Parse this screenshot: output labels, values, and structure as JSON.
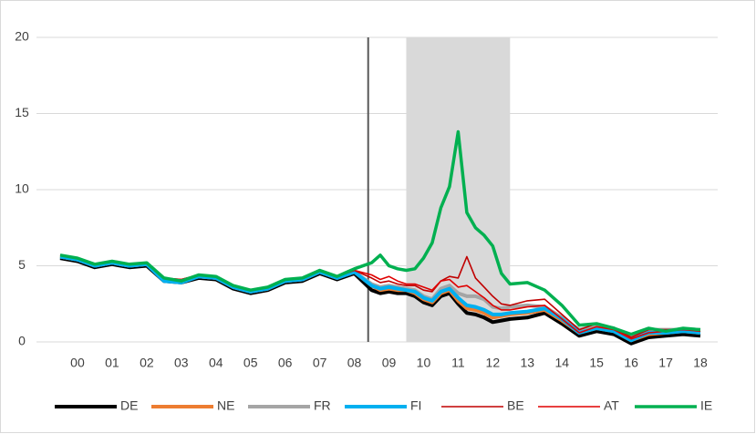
{
  "chart_data": {
    "type": "line",
    "x": [
      2000,
      2000.5,
      2001,
      2001.5,
      2002,
      2002.5,
      2003,
      2003.5,
      2004,
      2004.5,
      2005,
      2005.5,
      2006,
      2006.5,
      2007,
      2007.5,
      2008,
      2008.5,
      2009,
      2009.25,
      2009.5,
      2009.75,
      2010,
      2010.25,
      2010.5,
      2010.75,
      2011,
      2011.25,
      2011.5,
      2011.75,
      2012,
      2012.25,
      2012.5,
      2012.75,
      2013,
      2013.5,
      2014,
      2014.5,
      2015,
      2015.5,
      2016,
      2016.5,
      2017,
      2017.5,
      2018,
      2018.5
    ],
    "xlim": [
      2000,
      2019
    ],
    "xticks": [
      {
        "value": 2000.5,
        "label": "00"
      },
      {
        "value": 2001.5,
        "label": "01"
      },
      {
        "value": 2002.5,
        "label": "02"
      },
      {
        "value": 2003.5,
        "label": "03"
      },
      {
        "value": 2004.5,
        "label": "04"
      },
      {
        "value": 2005.5,
        "label": "05"
      },
      {
        "value": 2006.5,
        "label": "06"
      },
      {
        "value": 2007.5,
        "label": "07"
      },
      {
        "value": 2008.5,
        "label": "08"
      },
      {
        "value": 2009.5,
        "label": "09"
      },
      {
        "value": 2010.5,
        "label": "10"
      },
      {
        "value": 2011.5,
        "label": "11"
      },
      {
        "value": 2012.5,
        "label": "12"
      },
      {
        "value": 2013.5,
        "label": "13"
      },
      {
        "value": 2014.5,
        "label": "14"
      },
      {
        "value": 2015.5,
        "label": "15"
      },
      {
        "value": 2016.5,
        "label": "16"
      },
      {
        "value": 2017.5,
        "label": "17"
      },
      {
        "value": 2018.5,
        "label": "18"
      }
    ],
    "ylim": [
      0,
      20
    ],
    "yticks": [
      0,
      5,
      10,
      15,
      20
    ],
    "grid": true,
    "shaded_region": [
      2010,
      2013
    ],
    "vline": 2008.9,
    "legend": "bottom",
    "series": [
      {
        "name": "DE",
        "color": "#000000",
        "width": 4,
        "values": [
          5.5,
          5.3,
          4.9,
          5.1,
          4.9,
          5.0,
          4.0,
          3.9,
          4.2,
          4.1,
          3.5,
          3.2,
          3.4,
          3.9,
          4.0,
          4.5,
          4.1,
          4.5,
          3.4,
          3.2,
          3.3,
          3.2,
          3.2,
          3.0,
          2.6,
          2.4,
          3.0,
          3.2,
          2.5,
          1.9,
          1.8,
          1.6,
          1.3,
          1.4,
          1.5,
          1.6,
          1.9,
          1.2,
          0.4,
          0.7,
          0.5,
          -0.1,
          0.3,
          0.4,
          0.5,
          0.4
        ]
      },
      {
        "name": "NE",
        "color": "#ed7d31",
        "width": 4,
        "values": [
          5.6,
          5.4,
          5.0,
          5.2,
          5.0,
          5.1,
          4.1,
          4.0,
          4.3,
          4.2,
          3.6,
          3.3,
          3.5,
          4.0,
          4.1,
          4.6,
          4.2,
          4.6,
          3.7,
          3.4,
          3.5,
          3.4,
          3.4,
          3.2,
          2.8,
          2.6,
          3.2,
          3.4,
          2.7,
          2.2,
          2.1,
          1.9,
          1.6,
          1.7,
          1.8,
          1.9,
          2.1,
          1.4,
          0.6,
          0.9,
          0.7,
          0.1,
          0.5,
          0.6,
          0.7,
          0.6
        ]
      },
      {
        "name": "FR",
        "color": "#a5a5a5",
        "width": 4,
        "values": [
          5.6,
          5.4,
          5.0,
          5.2,
          5.0,
          5.1,
          4.1,
          4.0,
          4.3,
          4.2,
          3.6,
          3.3,
          3.5,
          4.0,
          4.1,
          4.6,
          4.2,
          4.6,
          3.8,
          3.6,
          3.7,
          3.6,
          3.5,
          3.4,
          3.0,
          2.8,
          3.5,
          3.7,
          3.2,
          3.0,
          3.0,
          2.8,
          2.3,
          2.2,
          2.3,
          2.4,
          2.3,
          1.6,
          0.8,
          1.1,
          0.9,
          0.3,
          0.8,
          0.8,
          0.8,
          0.8
        ]
      },
      {
        "name": "FI",
        "color": "#00b0f0",
        "width": 4,
        "values": [
          5.6,
          5.4,
          5.0,
          5.2,
          5.0,
          5.1,
          4.0,
          3.9,
          4.3,
          4.2,
          3.6,
          3.3,
          3.5,
          4.0,
          4.1,
          4.6,
          4.2,
          4.6,
          3.7,
          3.5,
          3.6,
          3.5,
          3.4,
          3.3,
          2.9,
          2.7,
          3.3,
          3.5,
          2.9,
          2.4,
          2.3,
          2.1,
          1.8,
          1.8,
          1.9,
          2.0,
          2.2,
          1.5,
          0.6,
          0.9,
          0.7,
          0.1,
          0.6,
          0.6,
          0.7,
          0.6
        ]
      },
      {
        "name": "BE",
        "color": "#c00000",
        "width": 1.6,
        "values": [
          5.7,
          5.5,
          5.1,
          5.3,
          5.1,
          5.2,
          4.2,
          4.1,
          4.4,
          4.3,
          3.7,
          3.4,
          3.6,
          4.1,
          4.2,
          4.7,
          4.3,
          4.7,
          4.2,
          3.9,
          4.0,
          3.8,
          3.7,
          3.7,
          3.4,
          3.3,
          4.0,
          4.3,
          4.2,
          5.6,
          4.2,
          3.6,
          3.0,
          2.5,
          2.4,
          2.7,
          2.8,
          1.8,
          0.8,
          1.2,
          0.9,
          0.3,
          0.8,
          0.8,
          0.8,
          0.8
        ]
      },
      {
        "name": "AT",
        "color": "#e00000",
        "width": 1.6,
        "values": [
          5.7,
          5.5,
          5.1,
          5.3,
          5.1,
          5.2,
          4.2,
          4.1,
          4.4,
          4.3,
          3.7,
          3.4,
          3.6,
          4.1,
          4.2,
          4.7,
          4.3,
          4.7,
          4.4,
          4.1,
          4.3,
          4.0,
          3.8,
          3.8,
          3.6,
          3.4,
          4.0,
          4.1,
          3.6,
          3.7,
          3.3,
          2.9,
          2.4,
          2.1,
          2.1,
          2.3,
          2.4,
          1.5,
          0.6,
          1.0,
          0.8,
          0.2,
          0.6,
          0.7,
          0.8,
          0.7
        ]
      },
      {
        "name": "IE",
        "color": "#00b050",
        "width": 3.5,
        "values": [
          5.7,
          5.5,
          5.1,
          5.3,
          5.1,
          5.2,
          4.2,
          4.0,
          4.4,
          4.3,
          3.7,
          3.4,
          3.6,
          4.1,
          4.2,
          4.7,
          4.3,
          4.8,
          5.2,
          5.7,
          5.0,
          4.8,
          4.7,
          4.8,
          5.5,
          6.5,
          8.8,
          10.2,
          13.8,
          8.5,
          7.5,
          7.0,
          6.3,
          4.5,
          3.8,
          3.9,
          3.4,
          2.4,
          1.1,
          1.2,
          0.9,
          0.5,
          0.9,
          0.7,
          0.9,
          0.8
        ]
      }
    ]
  }
}
